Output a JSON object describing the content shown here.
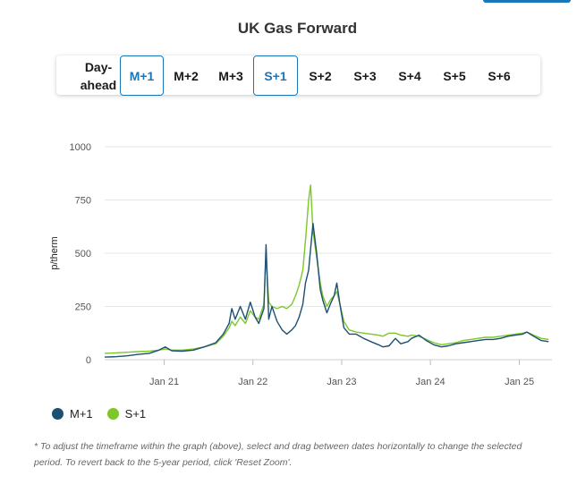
{
  "page": {
    "title": "UK Gas Forward",
    "tabs": [
      {
        "label_line1": "Day-",
        "label_line2": "ahead",
        "active": false
      },
      {
        "label": "M+1",
        "active": true
      },
      {
        "label": "M+2",
        "active": false
      },
      {
        "label": "M+3",
        "active": false
      },
      {
        "label": "S+1",
        "active": true
      },
      {
        "label": "S+2",
        "active": false
      },
      {
        "label": "S+3",
        "active": false
      },
      {
        "label": "S+4",
        "active": false
      },
      {
        "label": "S+5",
        "active": false
      },
      {
        "label": "S+6",
        "active": false
      }
    ],
    "footnote": "* To adjust the timeframe within the graph (above), select and drag between dates horizontally to change the selected period. To revert back to the 5-year period, click 'Reset Zoom'."
  },
  "colors": {
    "accent": "#1a76b8",
    "m1": "#1d4f73",
    "s1": "#7cc72a",
    "grid": "#e6e6e6"
  },
  "chart_data": {
    "type": "line",
    "title": "UK Gas Forward",
    "xlabel": "",
    "ylabel": "p/therm",
    "ylim": [
      0,
      1000
    ],
    "yticks": [
      "0",
      "250",
      "500",
      "750",
      "1000"
    ],
    "xticks": [
      "Jan 21",
      "Jan 22",
      "Jan 23",
      "Jan 24",
      "Jan 25"
    ],
    "xtick_dates": [
      "2021-01-01",
      "2022-01-01",
      "2023-01-01",
      "2024-01-01",
      "2025-01-01"
    ],
    "xlim": [
      "2020-05-01",
      "2025-05-15"
    ],
    "grid": true,
    "legend": "bottom-left",
    "series": [
      {
        "name": "M+1",
        "color": "#1d4f73",
        "x": [
          "2020-05-01",
          "2020-06-15",
          "2020-08-01",
          "2020-09-15",
          "2020-11-01",
          "2020-12-10",
          "2021-01-05",
          "2021-02-01",
          "2021-03-15",
          "2021-05-01",
          "2021-06-15",
          "2021-08-01",
          "2021-09-01",
          "2021-09-25",
          "2021-10-06",
          "2021-10-20",
          "2021-11-10",
          "2021-12-01",
          "2021-12-21",
          "2022-01-10",
          "2022-01-25",
          "2022-02-15",
          "2022-02-24",
          "2022-03-07",
          "2022-03-20",
          "2022-04-10",
          "2022-05-01",
          "2022-05-20",
          "2022-06-10",
          "2022-06-25",
          "2022-07-10",
          "2022-07-25",
          "2022-08-05",
          "2022-08-18",
          "2022-08-26",
          "2022-09-05",
          "2022-09-20",
          "2022-10-05",
          "2022-10-15",
          "2022-11-01",
          "2022-11-15",
          "2022-12-01",
          "2022-12-12",
          "2022-12-25",
          "2023-01-10",
          "2023-02-01",
          "2023-03-01",
          "2023-04-01",
          "2023-05-01",
          "2023-06-01",
          "2023-06-20",
          "2023-07-15",
          "2023-08-10",
          "2023-09-01",
          "2023-10-01",
          "2023-10-15",
          "2023-11-15",
          "2023-12-15",
          "2024-01-15",
          "2024-02-15",
          "2024-03-15",
          "2024-04-15",
          "2024-05-15",
          "2024-06-15",
          "2024-07-15",
          "2024-08-15",
          "2024-09-15",
          "2024-10-15",
          "2024-11-15",
          "2024-12-15",
          "2025-01-15",
          "2025-02-01",
          "2025-03-01",
          "2025-04-01",
          "2025-05-01"
        ],
        "y": [
          12,
          14,
          18,
          25,
          30,
          45,
          60,
          42,
          40,
          45,
          60,
          80,
          120,
          170,
          240,
          190,
          250,
          190,
          270,
          200,
          170,
          240,
          540,
          190,
          250,
          180,
          140,
          120,
          140,
          160,
          200,
          260,
          360,
          420,
          520,
          640,
          500,
          330,
          280,
          220,
          260,
          300,
          360,
          260,
          150,
          120,
          120,
          100,
          85,
          70,
          60,
          65,
          100,
          75,
          85,
          100,
          115,
          90,
          70,
          60,
          65,
          75,
          80,
          85,
          90,
          95,
          95,
          100,
          110,
          115,
          120,
          130,
          110,
          90,
          85
        ]
      },
      {
        "name": "S+1",
        "color": "#7cc72a",
        "x": [
          "2020-05-01",
          "2020-06-15",
          "2020-08-01",
          "2020-09-15",
          "2020-11-01",
          "2020-12-10",
          "2021-01-05",
          "2021-02-01",
          "2021-03-15",
          "2021-05-01",
          "2021-06-15",
          "2021-08-01",
          "2021-09-01",
          "2021-09-25",
          "2021-10-06",
          "2021-10-20",
          "2021-11-10",
          "2021-12-01",
          "2021-12-21",
          "2022-01-10",
          "2022-01-25",
          "2022-02-15",
          "2022-02-24",
          "2022-03-07",
          "2022-03-20",
          "2022-04-10",
          "2022-05-01",
          "2022-05-20",
          "2022-06-10",
          "2022-06-25",
          "2022-07-10",
          "2022-07-25",
          "2022-08-05",
          "2022-08-18",
          "2022-08-26",
          "2022-09-05",
          "2022-09-20",
          "2022-10-05",
          "2022-10-15",
          "2022-11-01",
          "2022-11-15",
          "2022-12-01",
          "2022-12-12",
          "2022-12-25",
          "2023-01-10",
          "2023-02-01",
          "2023-03-01",
          "2023-04-01",
          "2023-05-01",
          "2023-06-01",
          "2023-06-20",
          "2023-07-15",
          "2023-08-10",
          "2023-09-01",
          "2023-10-01",
          "2023-10-15",
          "2023-11-15",
          "2023-12-15",
          "2024-01-15",
          "2024-02-15",
          "2024-03-15",
          "2024-04-15",
          "2024-05-15",
          "2024-06-15",
          "2024-07-15",
          "2024-08-15",
          "2024-09-15",
          "2024-10-15",
          "2024-11-15",
          "2024-12-15",
          "2025-01-15",
          "2025-02-01",
          "2025-03-01",
          "2025-04-01",
          "2025-05-01"
        ],
        "y": [
          30,
          32,
          35,
          38,
          40,
          45,
          50,
          45,
          45,
          50,
          60,
          75,
          110,
          150,
          180,
          160,
          200,
          170,
          230,
          200,
          190,
          260,
          490,
          270,
          250,
          240,
          250,
          240,
          260,
          300,
          350,
          420,
          560,
          750,
          820,
          600,
          480,
          360,
          300,
          250,
          280,
          300,
          320,
          260,
          180,
          140,
          130,
          125,
          120,
          115,
          110,
          125,
          125,
          115,
          110,
          115,
          110,
          95,
          80,
          70,
          75,
          80,
          90,
          95,
          100,
          105,
          105,
          110,
          115,
          120,
          125,
          130,
          115,
          100,
          95
        ]
      }
    ]
  }
}
